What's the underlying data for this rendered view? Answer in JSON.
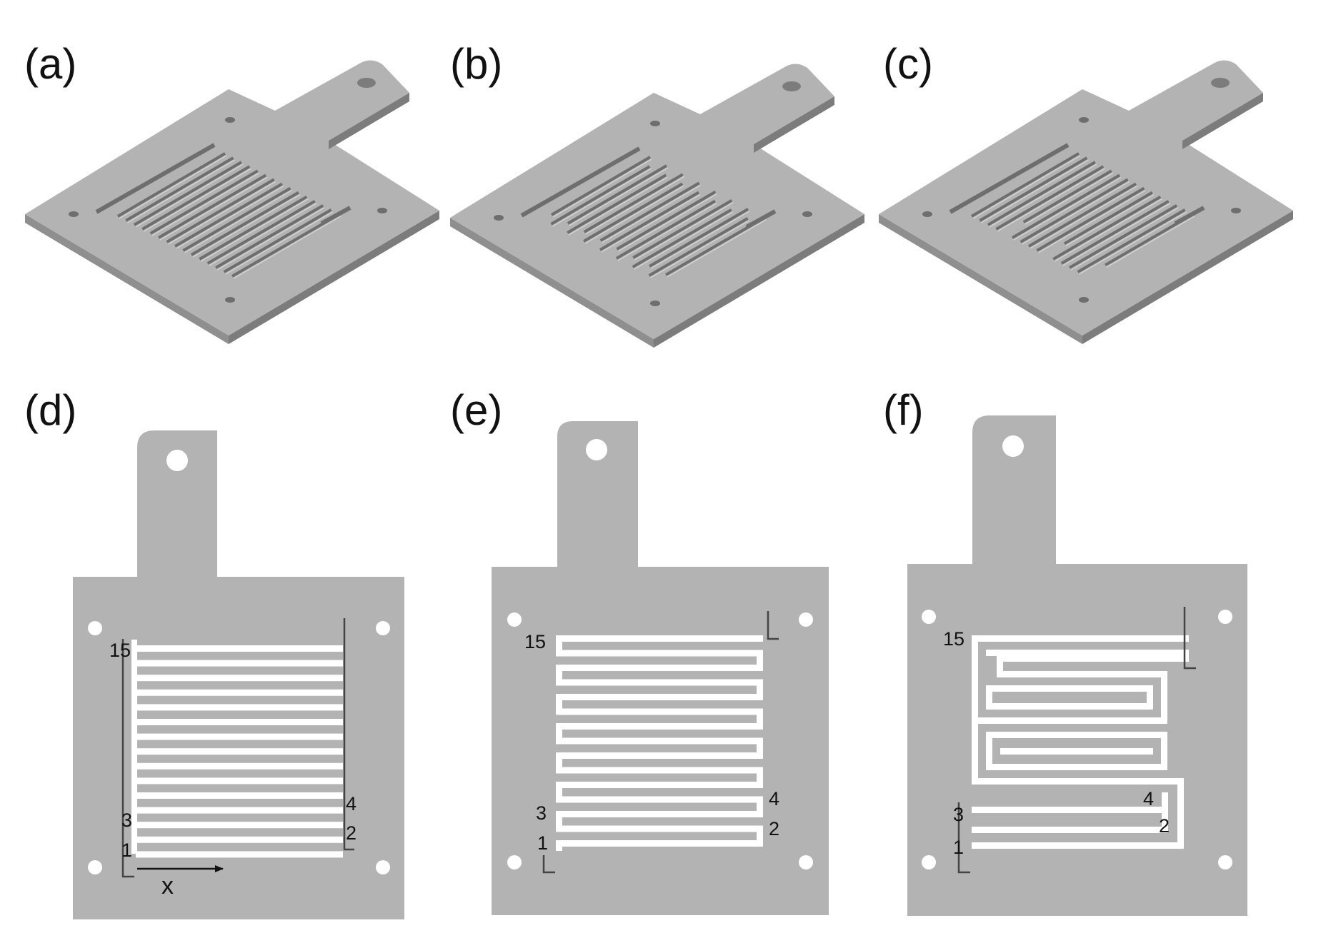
{
  "figure": {
    "colors": {
      "plate": "#b3b3b3",
      "plate_edge": "#8f8f8f",
      "plate_shadow": "#7c7c7c",
      "groove": "#6e6e6e",
      "groove_light": "#d2d2d2",
      "channel": "#ffffff",
      "ink": "#111111"
    },
    "panels": [
      {
        "id": "a",
        "label": "(a)",
        "view": "isometric",
        "flow_field": "parallel"
      },
      {
        "id": "b",
        "label": "(b)",
        "view": "isometric",
        "flow_field": "interdigitated"
      },
      {
        "id": "c",
        "label": "(c)",
        "view": "isometric",
        "flow_field": "serpentine"
      },
      {
        "id": "d",
        "label": "(d)",
        "view": "top",
        "flow_field": "parallel",
        "channel_labels": [
          "15",
          "3",
          "1",
          "4",
          "2"
        ],
        "axis_label": "x"
      },
      {
        "id": "e",
        "label": "(e)",
        "view": "top",
        "flow_field": "interdigitated",
        "channel_labels": [
          "15",
          "3",
          "1",
          "4",
          "2"
        ]
      },
      {
        "id": "f",
        "label": "(f)",
        "view": "top",
        "flow_field": "serpentine",
        "channel_labels": [
          "15",
          "3",
          "1",
          "4",
          "2"
        ]
      }
    ]
  }
}
